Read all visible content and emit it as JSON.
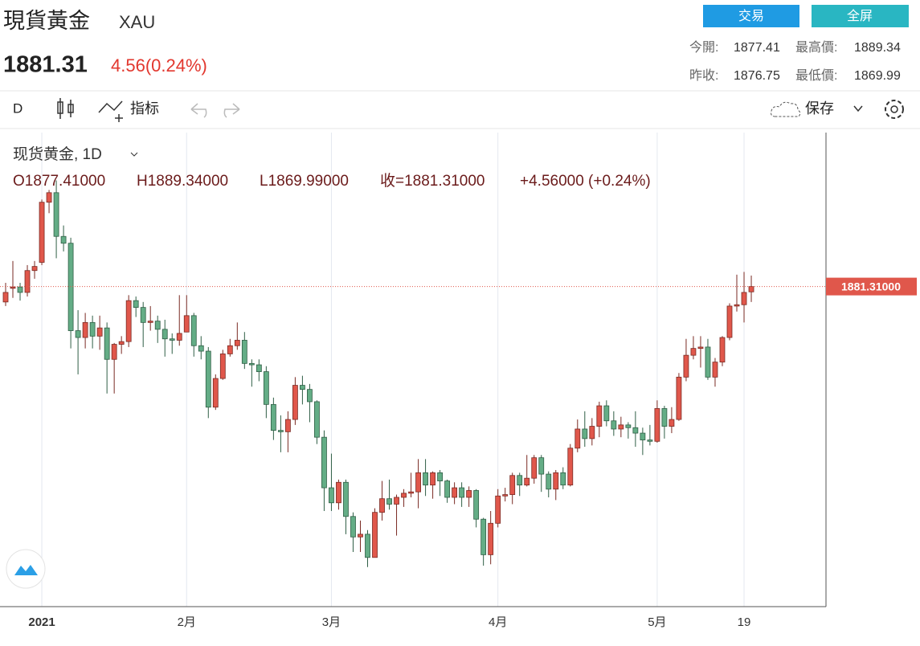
{
  "header": {
    "title": "現貨黃金",
    "symbol": "XAU",
    "price": "1881.31",
    "change": "4.56(0.24%)",
    "buttons": [
      "交易",
      "全屏"
    ],
    "stats": [
      [
        "今開:",
        "1877.41",
        "最高價:",
        "1889.34"
      ],
      [
        "昨收:",
        "1876.75",
        "最低價:",
        "1869.99"
      ]
    ],
    "toolbar": {
      "interval": "D",
      "indicators": "指标",
      "save": "保存"
    }
  },
  "chart_data": {
    "type": "candlestick",
    "title": "现货黄金, 1D",
    "legend_values": [
      "O1877.41000",
      "H1889.34000",
      "L1869.99000",
      "收=1881.31000",
      "+4.56000 (+0.24%)"
    ],
    "up_color": "#e0574b",
    "down_color": "#64ad86",
    "ylim": [
      1647,
      1994
    ],
    "price_line": {
      "value": 1881.31,
      "label": "1881.31000"
    },
    "grid": true,
    "categories": [
      null,
      null,
      null,
      null,
      null,
      "2021",
      null,
      null,
      null,
      null,
      null,
      null,
      null,
      null,
      null,
      null,
      null,
      null,
      null,
      null,
      null,
      null,
      null,
      null,
      null,
      "2月",
      null,
      null,
      null,
      null,
      null,
      null,
      null,
      null,
      null,
      null,
      null,
      null,
      null,
      null,
      null,
      null,
      null,
      null,
      null,
      "3月",
      null,
      null,
      null,
      null,
      null,
      null,
      null,
      null,
      null,
      null,
      null,
      null,
      null,
      null,
      null,
      null,
      null,
      null,
      null,
      null,
      null,
      null,
      "4月",
      null,
      null,
      null,
      null,
      null,
      null,
      null,
      null,
      null,
      null,
      null,
      null,
      null,
      null,
      null,
      null,
      null,
      null,
      null,
      null,
      null,
      "5月",
      null,
      null,
      null,
      null,
      null,
      null,
      null,
      null,
      null,
      null,
      null,
      "19",
      null
    ],
    "open": [
      1870,
      1880,
      1881,
      1877,
      1893,
      1899,
      1943,
      1950,
      1918,
      1913,
      1849,
      1844,
      1855,
      1845,
      1851,
      1828,
      1839,
      1841,
      1871,
      1866,
      1855,
      1856,
      1850,
      1843,
      1842,
      1848,
      1860,
      1838,
      1834,
      1793,
      1814,
      1832,
      1838,
      1842,
      1825,
      1824,
      1819,
      1795,
      1776,
      1775,
      1784,
      1809,
      1806,
      1797,
      1771,
      1734,
      1723,
      1738,
      1713,
      1698,
      1700,
      1683,
      1716,
      1726,
      1722,
      1727,
      1730,
      1731,
      1745,
      1736,
      1745,
      1739,
      1727,
      1734,
      1727,
      1732,
      1711,
      1685,
      1708,
      1728,
      1729,
      1743,
      1736,
      1741,
      1756,
      1744,
      1733,
      1745,
      1736,
      1763,
      1777,
      1770,
      1779,
      1794,
      1783,
      1777,
      1780,
      1778,
      1774,
      1769,
      1768,
      1792,
      1779,
      1784,
      1815,
      1831,
      1836,
      1837,
      1815,
      1826,
      1844,
      1867,
      1868,
      1877.41
    ],
    "high": [
      1884,
      1900,
      1884,
      1897,
      1900,
      1945,
      1952,
      1959,
      1926,
      1917,
      1864,
      1862,
      1860,
      1860,
      1855,
      1840,
      1845,
      1875,
      1874,
      1870,
      1867,
      1860,
      1857,
      1847,
      1875,
      1875,
      1862,
      1845,
      1837,
      1817,
      1835,
      1843,
      1855,
      1848,
      1828,
      1828,
      1823,
      1800,
      1787,
      1790,
      1815,
      1816,
      1810,
      1798,
      1776,
      1759,
      1740,
      1740,
      1716,
      1710,
      1703,
      1719,
      1739,
      1740,
      1729,
      1733,
      1745,
      1755,
      1755,
      1746,
      1747,
      1740,
      1738,
      1738,
      1735,
      1733,
      1712,
      1717,
      1733,
      1734,
      1745,
      1745,
      1758,
      1758,
      1758,
      1746,
      1747,
      1749,
      1766,
      1784,
      1790,
      1785,
      1797,
      1798,
      1790,
      1786,
      1782,
      1790,
      1778,
      1780,
      1798,
      1794,
      1793,
      1818,
      1843,
      1845,
      1845,
      1843,
      1829,
      1845,
      1869,
      1890,
      1892,
      1889.34
    ],
    "low": [
      1867,
      1873,
      1871,
      1874,
      1887,
      1897,
      1935,
      1902,
      1907,
      1836,
      1817,
      1836,
      1836,
      1835,
      1803,
      1803,
      1832,
      1837,
      1859,
      1837,
      1849,
      1840,
      1830,
      1832,
      1838,
      1848,
      1830,
      1828,
      1785,
      1791,
      1813,
      1830,
      1835,
      1821,
      1808,
      1812,
      1785,
      1769,
      1760,
      1760,
      1780,
      1795,
      1782,
      1766,
      1717,
      1717,
      1718,
      1700,
      1687,
      1687,
      1676,
      1683,
      1710,
      1718,
      1699,
      1720,
      1727,
      1719,
      1728,
      1726,
      1728,
      1723,
      1722,
      1720,
      1720,
      1705,
      1677,
      1678,
      1705,
      1724,
      1722,
      1728,
      1735,
      1737,
      1731,
      1727,
      1725,
      1733,
      1735,
      1760,
      1764,
      1765,
      1771,
      1779,
      1772,
      1771,
      1770,
      1764,
      1758,
      1765,
      1767,
      1770,
      1774,
      1783,
      1812,
      1828,
      1822,
      1813,
      1808,
      1823,
      1842,
      1863,
      1855,
      1869.99
    ],
    "close": [
      1877,
      1881,
      1877,
      1893,
      1896,
      1943,
      1950,
      1918,
      1913,
      1849,
      1844,
      1855,
      1845,
      1851,
      1828,
      1839,
      1841,
      1871,
      1866,
      1855,
      1856,
      1850,
      1843,
      1842,
      1847,
      1860,
      1838,
      1834,
      1793,
      1814,
      1832,
      1838,
      1842,
      1825,
      1824,
      1819,
      1795,
      1776,
      1775,
      1784,
      1809,
      1806,
      1797,
      1771,
      1734,
      1723,
      1738,
      1713,
      1698,
      1700,
      1683,
      1716,
      1726,
      1722,
      1727,
      1730,
      1731,
      1745,
      1736,
      1745,
      1739,
      1727,
      1734,
      1727,
      1732,
      1711,
      1685,
      1708,
      1728,
      1729,
      1743,
      1736,
      1741,
      1756,
      1744,
      1733,
      1745,
      1736,
      1763,
      1777,
      1770,
      1779,
      1794,
      1783,
      1777,
      1780,
      1778,
      1774,
      1769,
      1768,
      1792,
      1779,
      1784,
      1815,
      1831,
      1836,
      1837,
      1815,
      1826,
      1844,
      1867,
      1868,
      1877,
      1881.31
    ]
  }
}
